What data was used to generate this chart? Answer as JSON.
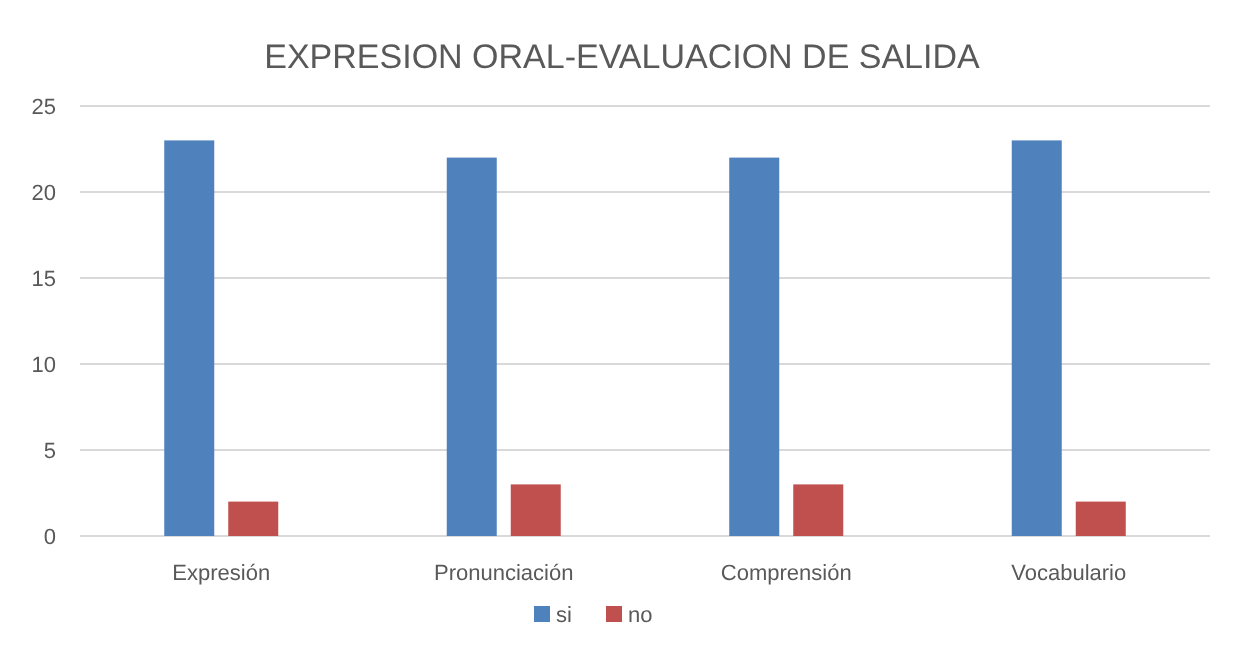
{
  "chart_data": {
    "type": "bar",
    "title": "EXPRESION ORAL-EVALUACION DE SALIDA",
    "categories": [
      "Expresión",
      "Pronunciación",
      "Comprensión",
      "Vocabulario"
    ],
    "series": [
      {
        "name": "si",
        "color": "#4f81bd",
        "values": [
          23,
          22,
          22,
          23
        ]
      },
      {
        "name": "no",
        "color": "#c0504d",
        "values": [
          2,
          3,
          3,
          2
        ]
      }
    ],
    "ylim": [
      0,
      25
    ],
    "yticks": [
      0,
      5,
      10,
      15,
      20,
      25
    ],
    "grid": "y",
    "legend": "bottom"
  }
}
